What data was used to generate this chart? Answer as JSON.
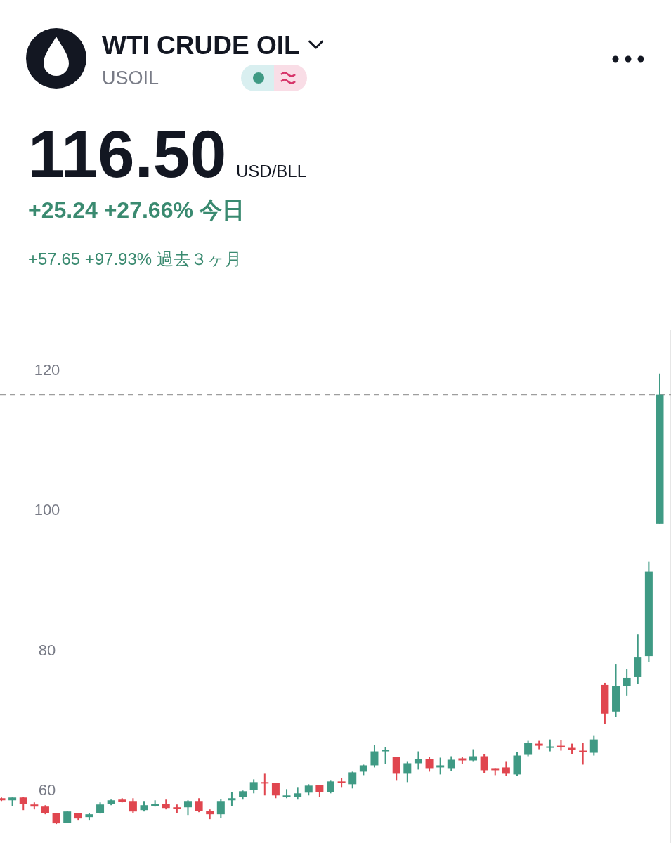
{
  "chart_data": {
    "type": "candlestick",
    "title": "WTI CRUDE OIL",
    "subtitle": "USOIL",
    "annotations": [
      "116.50",
      "USD/BLL",
      "+25.24 +27.66% 今日",
      "+57.65 +97.93% 過去３ヶ月"
    ],
    "categories": [
      null,
      null,
      null,
      null,
      null,
      null,
      null,
      null,
      null,
      null,
      null,
      null,
      null,
      null,
      null,
      null,
      null,
      null,
      null,
      null,
      null,
      null,
      null,
      null,
      null,
      null,
      null,
      null,
      null,
      null,
      null,
      null,
      null,
      null,
      null,
      null,
      null,
      null,
      null,
      null,
      null,
      null,
      null,
      null,
      null,
      null,
      null,
      null,
      null,
      null,
      null,
      null,
      null,
      null,
      null,
      null,
      null,
      null,
      null,
      null,
      null
    ],
    "ohlc": [
      [
        58.8,
        58.9,
        58.4,
        58.5
      ],
      [
        58.5,
        58.9,
        57.7,
        58.9
      ],
      [
        58.9,
        59.0,
        57.1,
        58.0
      ],
      [
        57.9,
        58.2,
        57.2,
        57.6
      ],
      [
        57.6,
        57.8,
        56.5,
        56.7
      ],
      [
        56.7,
        56.7,
        55.1,
        55.2
      ],
      [
        55.3,
        57.0,
        55.3,
        56.9
      ],
      [
        56.7,
        56.7,
        55.7,
        55.9
      ],
      [
        56.1,
        56.7,
        55.7,
        56.5
      ],
      [
        56.7,
        58.2,
        56.6,
        57.9
      ],
      [
        58.0,
        58.6,
        57.8,
        58.5
      ],
      [
        58.6,
        58.8,
        58.2,
        58.3
      ],
      [
        58.4,
        58.8,
        56.7,
        56.9
      ],
      [
        57.1,
        58.4,
        56.9,
        57.8
      ],
      [
        57.7,
        58.5,
        57.6,
        58.0
      ],
      [
        58.0,
        58.6,
        57.2,
        57.4
      ],
      [
        57.5,
        57.9,
        56.7,
        57.3
      ],
      [
        57.5,
        58.5,
        56.4,
        58.4
      ],
      [
        58.4,
        58.8,
        56.8,
        57.0
      ],
      [
        57.0,
        57.2,
        55.8,
        56.5
      ],
      [
        56.5,
        58.7,
        56.0,
        58.4
      ],
      [
        58.5,
        59.7,
        57.7,
        58.8
      ],
      [
        59.0,
        59.9,
        58.6,
        59.8
      ],
      [
        60.0,
        61.5,
        59.5,
        61.1
      ],
      [
        61.1,
        62.3,
        59.2,
        60.9
      ],
      [
        61.0,
        61.0,
        58.8,
        59.2
      ],
      [
        59.0,
        60.1,
        58.8,
        59.2
      ],
      [
        59.0,
        60.4,
        58.6,
        59.5
      ],
      [
        59.6,
        60.8,
        59.2,
        60.6
      ],
      [
        60.7,
        60.7,
        59.0,
        59.7
      ],
      [
        59.7,
        61.3,
        59.5,
        61.2
      ],
      [
        61.2,
        61.7,
        60.4,
        61.0
      ],
      [
        60.8,
        62.6,
        60.2,
        62.5
      ],
      [
        62.6,
        63.6,
        62.1,
        63.5
      ],
      [
        63.5,
        66.4,
        63.2,
        65.5
      ],
      [
        65.5,
        66.1,
        63.7,
        65.7
      ],
      [
        64.7,
        64.7,
        61.3,
        62.3
      ],
      [
        62.3,
        64.1,
        61.1,
        63.8
      ],
      [
        63.8,
        65.5,
        62.9,
        64.4
      ],
      [
        64.4,
        64.7,
        62.6,
        63.1
      ],
      [
        63.2,
        64.6,
        62.2,
        63.5
      ],
      [
        63.1,
        64.8,
        62.7,
        64.3
      ],
      [
        64.5,
        64.7,
        63.7,
        64.2
      ],
      [
        64.2,
        65.8,
        64.1,
        64.8
      ],
      [
        64.8,
        65.1,
        62.4,
        62.8
      ],
      [
        63.1,
        63.1,
        62.1,
        62.8
      ],
      [
        63.2,
        64.1,
        62.0,
        62.3
      ],
      [
        62.2,
        65.4,
        62.0,
        64.9
      ],
      [
        65.0,
        67.0,
        64.8,
        66.7
      ],
      [
        66.6,
        67.0,
        65.8,
        66.3
      ],
      [
        66.0,
        67.2,
        65.5,
        66.2
      ],
      [
        66.3,
        67.1,
        65.6,
        66.1
      ],
      [
        66.0,
        66.6,
        65.1,
        65.7
      ],
      [
        65.6,
        66.7,
        63.6,
        65.5
      ],
      [
        65.3,
        67.8,
        64.9,
        67.2
      ],
      [
        75.0,
        75.3,
        69.4,
        70.9
      ],
      [
        71.2,
        78.0,
        70.4,
        74.8
      ],
      [
        74.8,
        77.2,
        73.4,
        76.0
      ],
      [
        76.2,
        82.2,
        75.1,
        79.0
      ],
      [
        79.1,
        92.6,
        78.3,
        91.2
      ],
      [
        98.0,
        119.5,
        98.0,
        116.5
      ]
    ],
    "colors": [
      "#e0464f",
      "#3f9a84",
      "#e0464f",
      "#e0464f",
      "#e0464f",
      "#e0464f",
      "#3f9a84",
      "#e0464f",
      "#3f9a84",
      "#3f9a84",
      "#3f9a84",
      "#e0464f",
      "#e0464f",
      "#3f9a84",
      "#3f9a84",
      "#e0464f",
      "#e0464f",
      "#3f9a84",
      "#e0464f",
      "#e0464f",
      "#3f9a84",
      "#3f9a84",
      "#3f9a84",
      "#3f9a84",
      "#e0464f",
      "#e0464f",
      "#3f9a84",
      "#3f9a84",
      "#3f9a84",
      "#e0464f",
      "#3f9a84",
      "#e0464f",
      "#3f9a84",
      "#3f9a84",
      "#3f9a84",
      "#3f9a84",
      "#e0464f",
      "#3f9a84",
      "#3f9a84",
      "#e0464f",
      "#3f9a84",
      "#3f9a84",
      "#e0464f",
      "#3f9a84",
      "#e0464f",
      "#e0464f",
      "#e0464f",
      "#3f9a84",
      "#3f9a84",
      "#e0464f",
      "#3f9a84",
      "#e0464f",
      "#e0464f",
      "#e0464f",
      "#3f9a84",
      "#e0464f",
      "#3f9a84",
      "#3f9a84",
      "#3f9a84",
      "#3f9a84",
      "#3f9a84"
    ],
    "ylim": [
      52.4,
      125.7
    ],
    "yticks": [
      60,
      80,
      100,
      120
    ],
    "tick_labels": "y",
    "ref_lines": [
      {
        "axis": "y",
        "value": 116.5,
        "color": "#9e9e9e",
        "line_style": "dashed"
      }
    ]
  }
}
